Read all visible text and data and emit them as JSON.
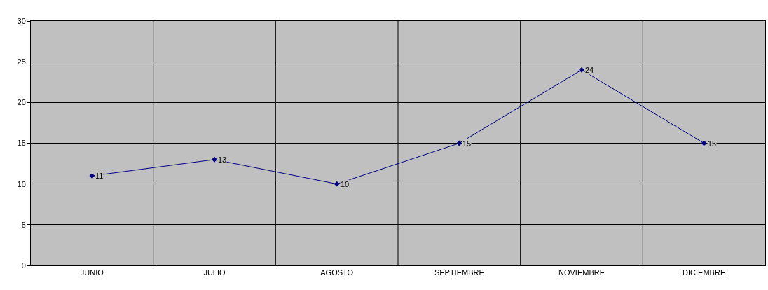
{
  "chart_data": {
    "type": "line",
    "categories": [
      "JUNIO",
      "JULIO",
      "AGOSTO",
      "SEPTIEMBRE",
      "NOVIEMBRE",
      "DICIEMBRE"
    ],
    "series": [
      {
        "color": "#000080",
        "values": [
          11,
          13,
          10,
          15,
          24,
          15
        ]
      }
    ],
    "ylim": [
      0,
      30
    ],
    "yticks": [
      0,
      5,
      10,
      15,
      20,
      25,
      30
    ],
    "grid": true,
    "marker": "diamond",
    "line_style": "solid",
    "data_labels": true,
    "legend": false
  }
}
